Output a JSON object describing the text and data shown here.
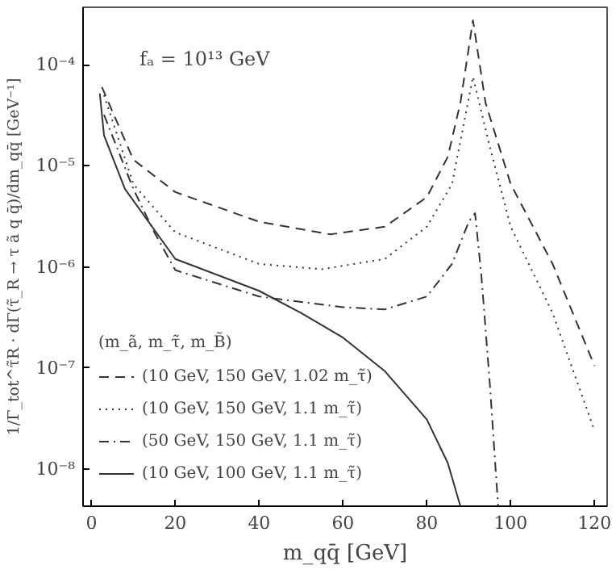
{
  "chart_data": {
    "type": "line",
    "annotations": [
      "fₐ = 10¹³ GeV"
    ],
    "xlabel": "m_qq̄ [GeV]",
    "ylabel": "1/Γ_tot^τ̃R · dΓ(τ̃_R → τ ã q q̄)/dm_qq̄ [GeV⁻¹]",
    "legend_title": "(m_ã, m_τ̃, m_B̃)",
    "legend": "bottom left",
    "log": "y",
    "grid": false,
    "xlim": [
      -2,
      123
    ],
    "ylim": [
      4.3e-09,
      0.00037
    ],
    "xticks": [
      0,
      20,
      40,
      60,
      80,
      100,
      120
    ],
    "yticks": [
      {
        "value": 1e-08,
        "label": "10⁻⁸"
      },
      {
        "value": 1e-07,
        "label": "10⁻⁷"
      },
      {
        "value": 1e-06,
        "label": "10⁻⁶"
      },
      {
        "value": 1e-05,
        "label": "10⁻⁵"
      },
      {
        "value": 0.0001,
        "label": "10⁻⁴"
      }
    ],
    "series": [
      {
        "name": "(10 GeV, 150 GeV, 1.02 m_τ̃)",
        "color": "#333333",
        "line_style": "dashed",
        "x": [
          2.5,
          10,
          20,
          40,
          57,
          70,
          80,
          85,
          88,
          91,
          94,
          100,
          110,
          120
        ],
        "values": [
          6e-05,
          1.15e-05,
          5.5e-06,
          2.8e-06,
          2.1e-06,
          2.5e-06,
          4.9e-06,
          1.23e-05,
          4.2e-05,
          0.000275,
          4.2e-05,
          6.6e-06,
          1.07e-06,
          1.05e-07
        ]
      },
      {
        "name": "(10 GeV, 150 GeV, 1.1 m_τ̃)",
        "color": "#333333",
        "line_style": "dotted",
        "x": [
          3,
          10,
          20,
          40,
          55,
          70,
          80,
          86,
          91,
          95,
          100,
          110,
          120
        ],
        "values": [
          5e-05,
          6.6e-06,
          2.2e-06,
          1.07e-06,
          9.5e-07,
          1.2e-06,
          2.5e-06,
          6.6e-06,
          7.6e-05,
          1.55e-05,
          2.5e-06,
          3.5e-07,
          2.4e-08
        ]
      },
      {
        "name": "(50 GeV, 150 GeV, 1.1 m_τ̃)",
        "color": "#333333",
        "line_style": "dashdot",
        "x": [
          3,
          10,
          15,
          20,
          40,
          60,
          70,
          80,
          86,
          90,
          91.5,
          93,
          95,
          97
        ],
        "values": [
          3.2e-05,
          5.9e-06,
          2.2e-06,
          9.3e-07,
          5.1e-07,
          4e-07,
          3.8e-07,
          5.1e-07,
          1.07e-06,
          2.8e-06,
          3.4e-06,
          8.3e-07,
          7.2e-08,
          4.3e-09
        ]
      },
      {
        "name": "(10 GeV, 100 GeV, 1.1 m_τ̃)",
        "color": "#333333",
        "line_style": "solid",
        "x": [
          2,
          3,
          8,
          20,
          40,
          50,
          60,
          70,
          80,
          85,
          88
        ],
        "values": [
          5.2e-05,
          2e-05,
          5.9e-06,
          1.2e-06,
          5.8e-07,
          3.5e-07,
          2e-07,
          9.3e-08,
          3.1e-08,
          1.15e-08,
          4.3e-09
        ]
      }
    ]
  }
}
